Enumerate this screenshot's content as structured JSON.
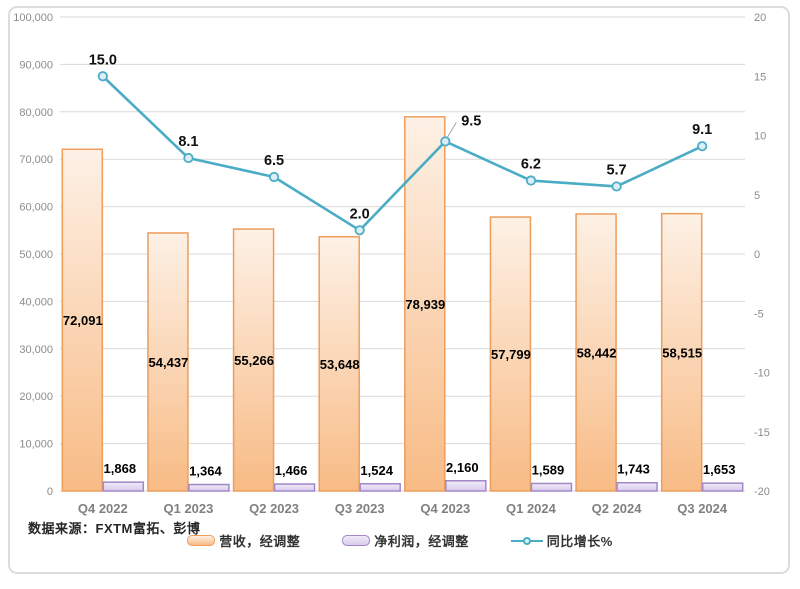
{
  "footer": {
    "source_label": "数据来源：FXTM富拓、彭博"
  },
  "chart_data": {
    "type": "bar+line combo",
    "categories": [
      "Q4 2022",
      "Q1 2023",
      "Q2 2023",
      "Q3 2023",
      "Q4 2023",
      "Q1 2024",
      "Q2 2024",
      "Q3 2024"
    ],
    "series": [
      {
        "name": "营收，经调整",
        "type": "bar",
        "axis": "left",
        "values": [
          72091,
          54437,
          55266,
          53648,
          78939,
          57799,
          58442,
          58515
        ],
        "labels": [
          "72,091",
          "54,437",
          "55,266",
          "53,648",
          "78,939",
          "57,799",
          "58,442",
          "58,515"
        ],
        "label_position": "inside-center"
      },
      {
        "name": "净利润，经调整",
        "type": "bar",
        "axis": "left",
        "values": [
          1868,
          1364,
          1466,
          1524,
          2160,
          1589,
          1743,
          1653
        ],
        "labels": [
          "1,868",
          "1,364",
          "1,466",
          "1,524",
          "2,160",
          "1,589",
          "1,743",
          "1,653"
        ],
        "label_position": "outside-top"
      },
      {
        "name": "同比增长%",
        "type": "line",
        "axis": "right",
        "values": [
          15.0,
          8.1,
          6.5,
          2.0,
          9.5,
          6.2,
          5.7,
          9.1
        ],
        "labels": [
          "15.0",
          "8.1",
          "6.5",
          "2.0",
          "9.5",
          "6.2",
          "5.7",
          "9.1"
        ],
        "label_position": "above",
        "callout_index": 4
      }
    ],
    "left_axis": {
      "min": 0,
      "max": 100000,
      "step": 10000,
      "tick_labels": [
        "0",
        "10,000",
        "20,000",
        "30,000",
        "40,000",
        "50,000",
        "60,000",
        "70,000",
        "80,000",
        "90,000",
        "100,000"
      ]
    },
    "right_axis": {
      "min": -20,
      "max": 20,
      "step": 5,
      "tick_labels": [
        "-20",
        "-15",
        "-10",
        "-5",
        "0",
        "5",
        "10",
        "15",
        "20"
      ],
      "title": "同比增长%"
    },
    "legend": {
      "position": "bottom",
      "items": [
        {
          "label": "营收，经调整",
          "swatch": "bar-orange"
        },
        {
          "label": "净利润，经调整",
          "swatch": "bar-purple"
        },
        {
          "label": "同比增长%",
          "swatch": "line-marker"
        }
      ]
    },
    "grid": "horizontal",
    "colors": {
      "revenue_fill_top": "#FDF1E6",
      "revenue_fill_bottom": "#F8BB85",
      "revenue_border": "#ED9D5C",
      "profit_fill_top": "#F0EAF8",
      "profit_fill_bottom": "#D9CBEC",
      "profit_border": "#A288C8",
      "line": "#4BACC6",
      "marker_fill": "#DCEFF7",
      "gridline": "#D9D9D9",
      "axis_text": "#8C8C8C",
      "category_text": "#808080",
      "value_text": "#000000",
      "frame_border": "#DCDCDC",
      "leader_line": "#A6A6A6"
    }
  }
}
